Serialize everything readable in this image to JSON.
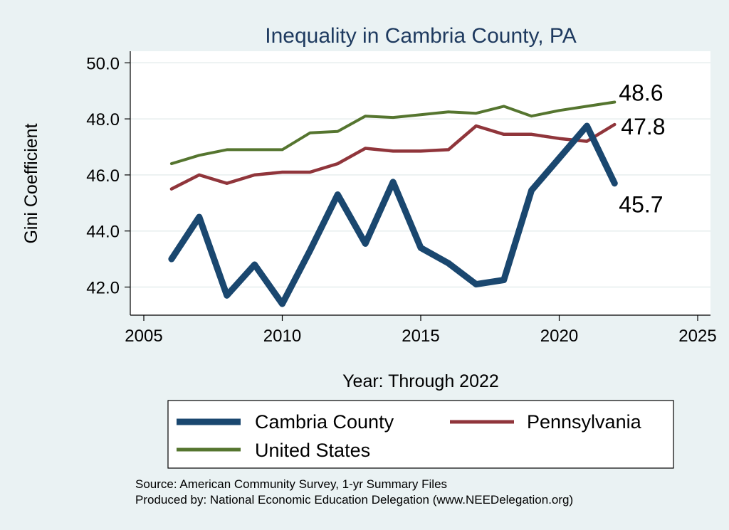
{
  "chart_data": {
    "type": "line",
    "title": "Inequality in Cambria County, PA",
    "xlabel": "Year: Through 2022",
    "ylabel": "Gini Coefficient",
    "xlim": [
      2005,
      2025
    ],
    "ylim": [
      41.0,
      50.5
    ],
    "x_ticks": [
      2005,
      2010,
      2015,
      2020,
      2025
    ],
    "y_ticks": [
      42.0,
      44.0,
      46.0,
      48.0,
      50.0
    ],
    "y_tick_labels": [
      "42.0",
      "44.0",
      "46.0",
      "48.0",
      "50.0"
    ],
    "grid": true,
    "x": [
      2006,
      2007,
      2008,
      2009,
      2010,
      2011,
      2012,
      2013,
      2014,
      2015,
      2016,
      2017,
      2018,
      2019,
      2020,
      2021,
      2022
    ],
    "series": [
      {
        "name": "Cambria County",
        "color": "#1a476f",
        "values": [
          43.0,
          44.5,
          41.7,
          42.8,
          41.4,
          43.3,
          45.3,
          43.55,
          45.75,
          43.4,
          42.85,
          42.1,
          42.25,
          45.45,
          46.6,
          47.75,
          45.7
        ],
        "end_label": "45.7"
      },
      {
        "name": "Pennsylvania",
        "color": "#90353b",
        "values": [
          45.5,
          46.0,
          45.7,
          46.0,
          46.1,
          46.1,
          46.4,
          46.95,
          46.85,
          46.85,
          46.9,
          47.75,
          47.45,
          47.45,
          47.3,
          47.2,
          47.8
        ],
        "end_label": "47.8"
      },
      {
        "name": "United States",
        "color": "#55752f",
        "values": [
          46.4,
          46.7,
          46.9,
          46.9,
          46.9,
          47.5,
          47.55,
          48.1,
          48.05,
          48.15,
          48.25,
          48.2,
          48.45,
          48.1,
          48.3,
          48.45,
          48.6
        ],
        "end_label": "48.6"
      }
    ],
    "legend_position": "bottom"
  },
  "source_lines": [
    "Source: American Community Survey, 1-yr Summary Files",
    "Produced by: National Economic Education Delegation (www.NEEDelegation.org)"
  ]
}
